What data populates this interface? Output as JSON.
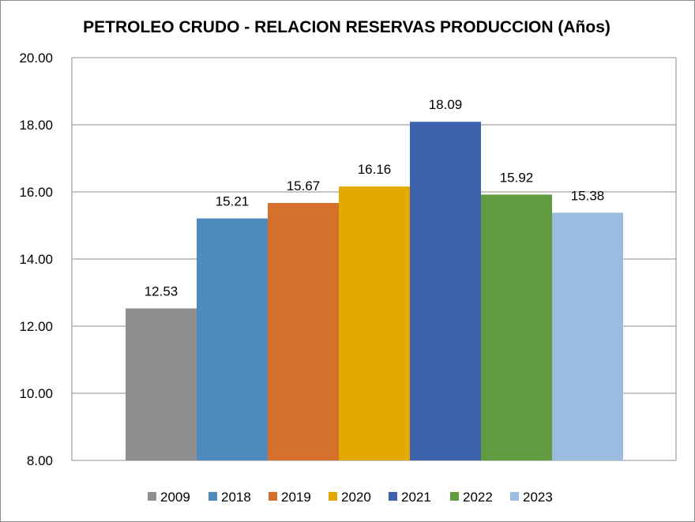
{
  "chart_data": {
    "type": "bar",
    "title": "PETROLEO CRUDO - RELACION RESERVAS PRODUCCION (Años)",
    "xlabel": "",
    "ylabel": "",
    "ylim": [
      8,
      20
    ],
    "y_ticks": [
      "8.00",
      "10.00",
      "12.00",
      "14.00",
      "16.00",
      "18.00",
      "20.00"
    ],
    "grid": true,
    "legend_position": "bottom",
    "series": [
      {
        "name": "2009",
        "value": 12.53,
        "label": "12.53",
        "color": "#8f8f8f"
      },
      {
        "name": "2018",
        "value": 15.21,
        "label": "15.21",
        "color": "#4f8abf"
      },
      {
        "name": "2019",
        "value": 15.67,
        "label": "15.67",
        "color": "#d5702c"
      },
      {
        "name": "2020",
        "value": 16.16,
        "label": "16.16",
        "color": "#e2aa00"
      },
      {
        "name": "2021",
        "value": 18.09,
        "label": "18.09",
        "color": "#3c63ac"
      },
      {
        "name": "2022",
        "value": 15.92,
        "label": "15.92",
        "color": "#629c41"
      },
      {
        "name": "2023",
        "value": 15.38,
        "label": "15.38",
        "color": "#9bbce0"
      }
    ]
  }
}
